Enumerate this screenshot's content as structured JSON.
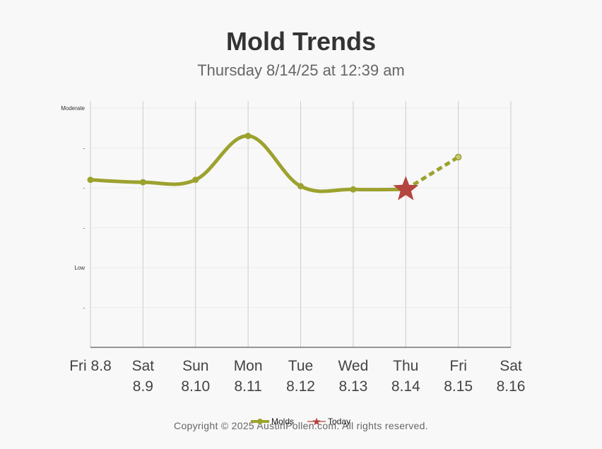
{
  "title": "Mold Trends",
  "subtitle": "Thursday 8/14/25 at 12:39 am",
  "copyright": "Copyright © 2025 AustinPollen.com.  All rights reserved.",
  "colors": {
    "series": "#9ca22e",
    "today": "#b5453f",
    "gridline": "#cccccc",
    "axis": "#333333"
  },
  "chart_data": {
    "type": "line",
    "categories": [
      [
        "Fri 8.8",
        ""
      ],
      [
        "Sat",
        "8.9"
      ],
      [
        "Sun",
        "8.10"
      ],
      [
        "Mon",
        "8.11"
      ],
      [
        "Tue",
        "8.12"
      ],
      [
        "Wed",
        "8.13"
      ],
      [
        "Thu",
        "8.14"
      ],
      [
        "Fri",
        "8.15"
      ],
      [
        "Sat",
        "8.16"
      ]
    ],
    "y_ticks": [
      {
        "value": 1,
        "label": "-"
      },
      {
        "value": 2,
        "label": "Low"
      },
      {
        "value": 3,
        "label": "-"
      },
      {
        "value": 4,
        "label": "-"
      },
      {
        "value": 5,
        "label": "-"
      },
      {
        "value": 6,
        "label": "Moderate"
      }
    ],
    "ylim": [
      0,
      6
    ],
    "series": [
      {
        "name": "Molds",
        "values": [
          4.2,
          4.14,
          4.2,
          5.3,
          4.04,
          3.96,
          3.96,
          4.77,
          null
        ],
        "observed_count": 7,
        "forecast_from_index": 6
      }
    ],
    "today_index": 6,
    "today_value": 3.96,
    "legend": [
      {
        "name": "Molds",
        "marker": "line-dot"
      },
      {
        "name": "Today",
        "marker": "star"
      }
    ],
    "legend_position": "bottom",
    "grid": true
  }
}
